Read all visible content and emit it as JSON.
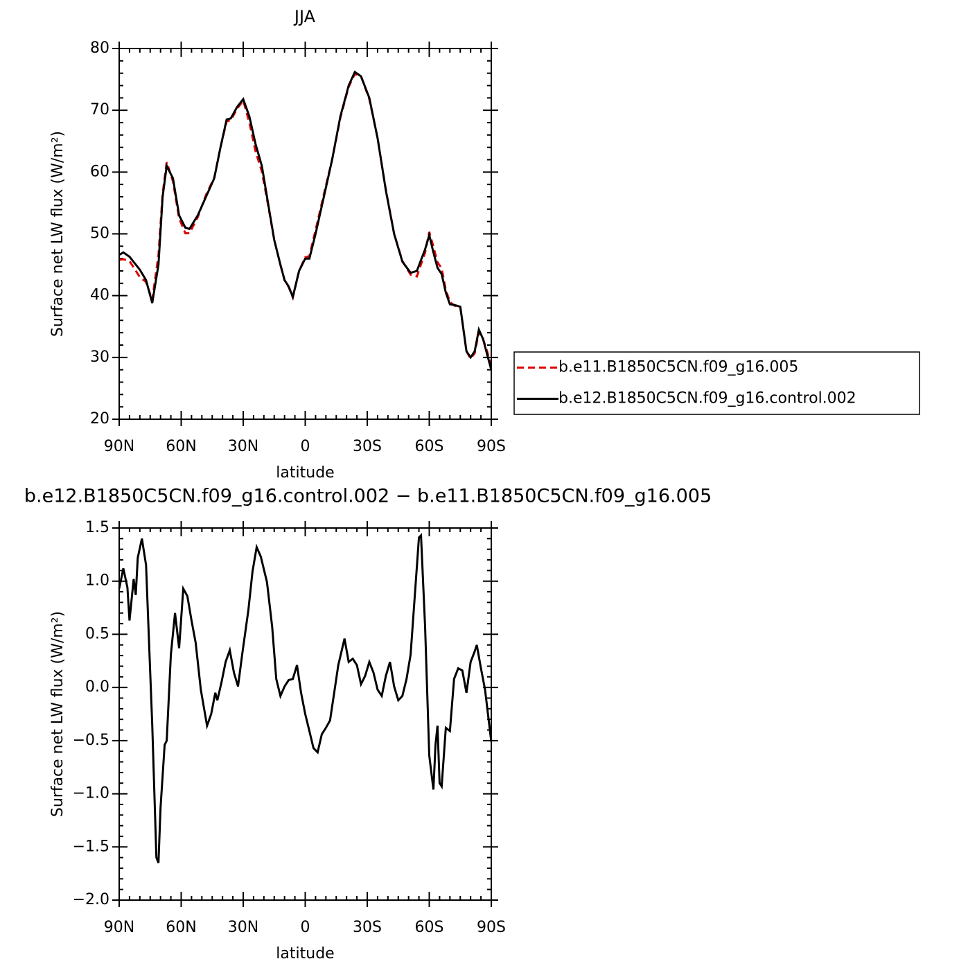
{
  "chart_data": [
    {
      "type": "line",
      "title": "JJA",
      "xlabel": "latitude",
      "ylabel": "Surface net LW flux (W/m²)",
      "x": [
        90,
        88,
        85,
        80,
        77,
        74,
        71,
        69,
        67,
        64,
        61,
        58,
        56,
        52,
        48,
        44,
        41,
        38,
        36,
        33,
        30,
        27,
        24,
        21,
        18,
        15,
        12,
        10,
        8,
        6,
        3,
        0,
        -2,
        -5,
        -9,
        -13,
        -17,
        -21,
        -24,
        -27,
        -31,
        -35,
        -39,
        -43,
        -47,
        -51,
        -54,
        -58,
        -60,
        -62,
        -64,
        -66,
        -68,
        -70,
        -72,
        -75,
        -78,
        -80,
        -82,
        -84,
        -86,
        -88,
        -90
      ],
      "series": [
        {
          "name": "b.e11.B1850C5CN.f09_g16.005",
          "color": "#e00000",
          "dash": "dashed",
          "values": [
            45.8,
            45.9,
            45.6,
            43,
            42.2,
            39.3,
            46.6,
            56.5,
            61.6,
            58.5,
            52.5,
            50.1,
            50.1,
            52.7,
            56.3,
            59.1,
            64,
            68.2,
            68.4,
            70.2,
            71.6,
            68,
            63.3,
            60.1,
            54.7,
            49,
            45,
            42.5,
            41.4,
            39.7,
            44,
            46.2,
            46.4,
            50.6,
            56.4,
            62,
            68.8,
            73.8,
            75.9,
            75.5,
            71.8,
            65.5,
            57.1,
            50,
            45.6,
            43.4,
            43.1,
            47,
            50.3,
            47.9,
            45.4,
            44.4,
            40.9,
            39,
            38.4,
            38.1,
            31,
            29.8,
            30.7,
            34.1,
            33,
            31,
            28.5
          ]
        },
        {
          "name": "b.e12.B1850C5CN.f09_g16.control.002",
          "color": "#000000",
          "dash": "solid",
          "values": [
            46.6,
            47,
            46.3,
            44.2,
            42.5,
            38.8,
            45,
            56,
            61,
            59,
            53,
            51,
            50.8,
            53,
            56,
            59,
            64,
            68.5,
            68.7,
            70.5,
            71.8,
            69,
            64.5,
            61,
            55,
            49,
            45,
            42.5,
            41.5,
            39.8,
            44,
            46,
            46,
            50,
            56,
            62,
            69,
            74,
            76.2,
            75.5,
            72,
            65.5,
            57,
            50,
            45.5,
            43.7,
            44,
            47.5,
            49.8,
            47,
            44.5,
            43.5,
            40.5,
            38.6,
            38.5,
            38.2,
            31,
            30,
            31,
            34.5,
            33,
            30.5,
            28
          ]
        }
      ],
      "xlim": [
        90,
        -90
      ],
      "xticks": [
        {
          "value": 90,
          "label": "90N"
        },
        {
          "value": 60,
          "label": "60N"
        },
        {
          "value": 30,
          "label": "30N"
        },
        0,
        {
          "value": -30,
          "label": "30S"
        },
        {
          "value": -60,
          "label": "60S"
        },
        {
          "value": -90,
          "label": "90S"
        }
      ],
      "ylim": [
        20,
        80
      ],
      "yticks": [
        20,
        30,
        40,
        50,
        60,
        70,
        80
      ],
      "legend": "right"
    },
    {
      "type": "line",
      "title": "b.e12.B1850C5CN.f09_g16.control.002 − b.e11.B1850C5CN.f09_g16.005",
      "xlabel": "latitude",
      "ylabel": "Surface net LW flux (W/m²)",
      "x": [
        90,
        88,
        86,
        85,
        83,
        82,
        81,
        79,
        77,
        74,
        72,
        71,
        70,
        68,
        67,
        65,
        63,
        61,
        59,
        57,
        55,
        53,
        50.5,
        47.5,
        45.5,
        43.5,
        42.5,
        40.5,
        38.5,
        36.5,
        34.5,
        32.5,
        30.5,
        27.5,
        25.5,
        23.5,
        21.5,
        18.5,
        16,
        14,
        12,
        10,
        8,
        6,
        4,
        2,
        0,
        -2,
        -4,
        -6,
        -8,
        -10,
        -12,
        -14,
        -16,
        -19,
        -21,
        -23,
        -25,
        -27,
        -29,
        -31,
        -33,
        -35,
        -37,
        -39,
        -41,
        -43,
        -45,
        -47,
        -49,
        -51,
        -53,
        -55,
        -56,
        -58,
        -60,
        -62,
        -63,
        -64,
        -65,
        -66,
        -68,
        -70,
        -72,
        -74,
        -76,
        -78,
        -80,
        -82,
        -83,
        -85,
        -87,
        -90
      ],
      "values": [
        0.93,
        1.12,
        0.94,
        0.63,
        1.02,
        0.87,
        1.22,
        1.4,
        1.15,
        -0.35,
        -1.6,
        -1.65,
        -1.13,
        -0.54,
        -0.5,
        0.31,
        0.7,
        0.37,
        0.93,
        0.86,
        0.63,
        0.42,
        -0.02,
        -0.36,
        -0.25,
        -0.05,
        -0.12,
        0.05,
        0.24,
        0.35,
        0.14,
        0.01,
        0.31,
        0.73,
        1.09,
        1.32,
        1.23,
        0.99,
        0.57,
        0.08,
        -0.08,
        0.01,
        0.07,
        0.08,
        0.21,
        -0.05,
        -0.25,
        -0.41,
        -0.57,
        -0.61,
        -0.44,
        -0.38,
        -0.31,
        -0.05,
        0.21,
        0.46,
        0.24,
        0.27,
        0.21,
        0.03,
        0.11,
        0.24,
        0.14,
        -0.02,
        -0.08,
        0.11,
        0.24,
        0.01,
        -0.12,
        -0.08,
        0.08,
        0.31,
        0.86,
        1.41,
        1.43,
        0.57,
        -0.64,
        -0.96,
        -0.54,
        -0.36,
        -0.9,
        -0.93,
        -0.38,
        -0.41,
        0.08,
        0.18,
        0.16,
        -0.05,
        0.24,
        0.34,
        0.4,
        0.18,
        -0.02,
        -0.51
      ],
      "color": "#000000",
      "xlim": [
        90,
        -90
      ],
      "xticks": [
        {
          "value": 90,
          "label": "90N"
        },
        {
          "value": 60,
          "label": "60N"
        },
        {
          "value": 30,
          "label": "30N"
        },
        0,
        {
          "value": -30,
          "label": "30S"
        },
        {
          "value": -60,
          "label": "60S"
        },
        {
          "value": -90,
          "label": "90S"
        }
      ],
      "ylim": [
        -2,
        1.5
      ],
      "yticks": [
        {
          "value": -2,
          "label": "−2.0"
        },
        {
          "value": -1.5,
          "label": "−1.5"
        },
        {
          "value": -1,
          "label": "−1.0"
        },
        {
          "value": -0.5,
          "label": "−0.5"
        },
        {
          "value": 0,
          "label": "0.0"
        },
        0.5,
        {
          "value": 1,
          "label": "1.0"
        },
        1.5
      ]
    }
  ]
}
